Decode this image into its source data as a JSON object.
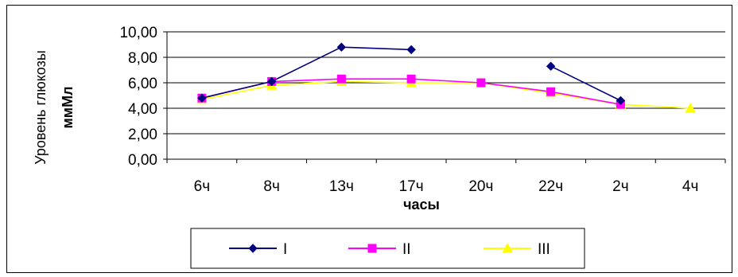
{
  "chart_data": {
    "type": "line",
    "categories": [
      "6ч",
      "8ч",
      "13ч",
      "17ч",
      "20ч",
      "22ч",
      "2ч",
      "4ч"
    ],
    "xlabel": "часы",
    "ylabel": "Уровень глюкозы ммМл",
    "ylabel_lines": [
      "Уровень глюкозы",
      "ммМл"
    ],
    "ylim": [
      0,
      10
    ],
    "yticks": [
      0,
      2,
      4,
      6,
      8,
      10
    ],
    "ytick_labels": [
      "0,00",
      "2,00",
      "4,00",
      "6,00",
      "8,00",
      "10,00"
    ],
    "grid": "horizontal",
    "legend_position": "bottom",
    "series": [
      {
        "name": "I",
        "color": "#000080",
        "marker": "diamond",
        "values": [
          4.8,
          6.1,
          8.8,
          8.6,
          null,
          7.3,
          4.6,
          null
        ]
      },
      {
        "name": "II",
        "color": "#ff00ff",
        "marker": "square",
        "values": [
          4.8,
          6.1,
          6.3,
          6.3,
          6.0,
          5.3,
          4.3,
          null
        ]
      },
      {
        "name": "III",
        "color": "#ffff00",
        "marker": "triangle",
        "values": [
          4.7,
          5.8,
          6.1,
          6.0,
          6.0,
          5.2,
          4.3,
          4.0
        ]
      }
    ]
  }
}
